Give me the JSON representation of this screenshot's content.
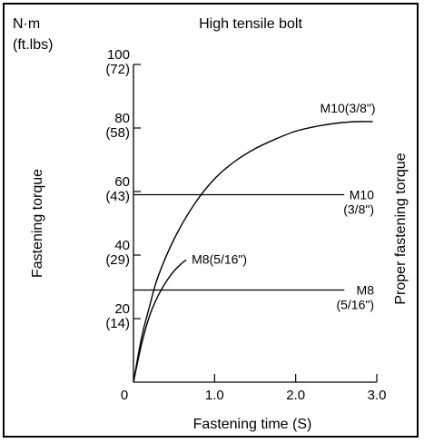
{
  "chart_data": {
    "type": "line",
    "title": "High tensile bolt",
    "unit_top": "N·m",
    "unit_sub": "(ft.lbs)",
    "xlabel": "Fastening time (S)",
    "ylabel": "Fastening torque",
    "right_label": "Proper fastening torque",
    "xlim": [
      0,
      3.0
    ],
    "ylim": [
      0,
      100
    ],
    "x_ticks": [
      {
        "value": 0,
        "label": "0"
      },
      {
        "value": 1.0,
        "label": "1.0"
      },
      {
        "value": 2.0,
        "label": "2.0"
      },
      {
        "value": 3.0,
        "label": "3.0"
      }
    ],
    "y_ticks": [
      {
        "value": 20,
        "label": "20",
        "sub": "(14)"
      },
      {
        "value": 40,
        "label": "40",
        "sub": "(29)"
      },
      {
        "value": 60,
        "label": "60",
        "sub": "(43)"
      },
      {
        "value": 80,
        "label": "80",
        "sub": "(58)"
      },
      {
        "value": 100,
        "label": "100",
        "sub": "(72)"
      }
    ],
    "series": [
      {
        "name": "M10(3/8\")",
        "kind": "curve",
        "x": [
          0,
          0.1,
          0.2,
          0.3,
          0.5,
          0.75,
          1.0,
          1.25,
          1.5,
          1.75,
          2.0,
          2.25,
          2.5,
          2.75,
          2.95
        ],
        "y": [
          0,
          14,
          24,
          33,
          45,
          56,
          64,
          69.5,
          73.5,
          76.5,
          79,
          80.5,
          81.5,
          82,
          82
        ]
      },
      {
        "name": "M8(5/16\")",
        "kind": "curve",
        "x": [
          0,
          0.1,
          0.2,
          0.3,
          0.4,
          0.5,
          0.6,
          0.65
        ],
        "y": [
          0,
          12,
          21,
          27,
          31.5,
          35,
          37.5,
          38.5
        ]
      },
      {
        "name": "M10 (3/8\")",
        "label_lines": [
          "M10",
          "(3/8\")"
        ],
        "kind": "level",
        "y": 59,
        "x": [
          0,
          2.6
        ]
      },
      {
        "name": "M8 (5/16\")",
        "label_lines": [
          "M8",
          "(5/16\")"
        ],
        "kind": "level",
        "y": 29,
        "x": [
          0,
          2.6
        ]
      }
    ]
  }
}
